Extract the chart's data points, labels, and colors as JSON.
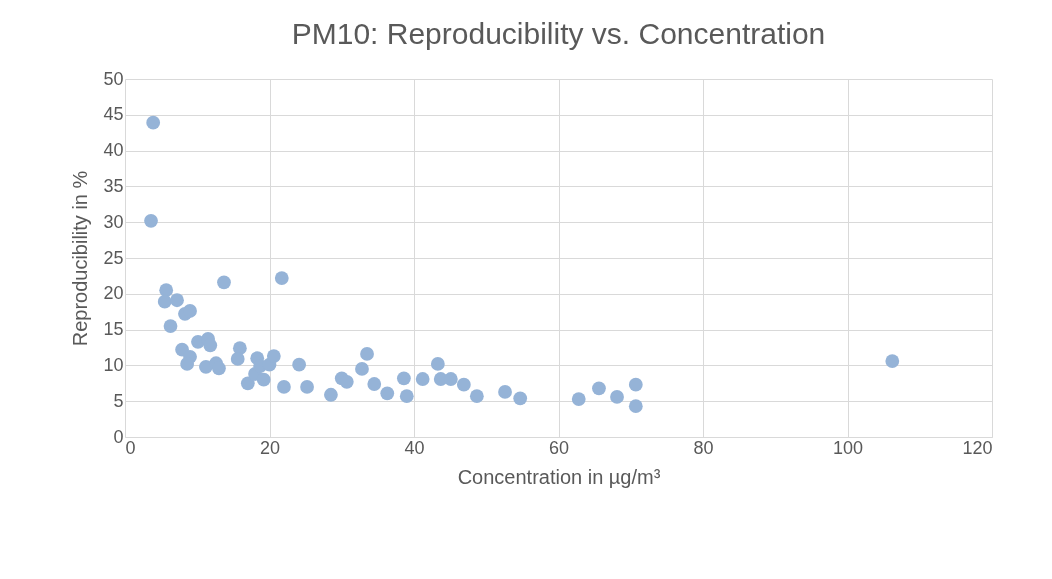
{
  "chart_data": {
    "type": "scatter",
    "title": "PM10: Reproducibility vs. Concentration",
    "xlabel": "Concentration in µg/m³",
    "ylabel": "Reproducibility in %",
    "x": [
      3.9,
      3.6,
      5.7,
      5.5,
      7.2,
      8.3,
      9.0,
      6.3,
      13.7,
      21.7,
      7.9,
      9.0,
      8.6,
      10.1,
      11.5,
      11.8,
      11.2,
      12.6,
      13.0,
      15.9,
      15.6,
      17.0,
      18.0,
      18.3,
      18.7,
      19.2,
      20.0,
      20.6,
      22.0,
      24.1,
      25.2,
      28.5,
      30.0,
      30.7,
      32.8,
      33.5,
      34.5,
      36.3,
      38.6,
      39.0,
      41.2,
      43.3,
      43.7,
      45.1,
      46.9,
      48.7,
      52.6,
      54.7,
      62.8,
      65.6,
      68.1,
      70.7,
      70.7,
      106.2
    ],
    "series": [
      {
        "color": "#95b3d7",
        "values": [
          43.9,
          30.2,
          20.5,
          18.9,
          19.1,
          17.2,
          17.6,
          15.5,
          21.6,
          22.2,
          12.2,
          11.2,
          10.2,
          13.3,
          13.7,
          12.8,
          9.8,
          10.3,
          9.6,
          12.4,
          10.9,
          7.5,
          8.8,
          11.0,
          9.9,
          8.0,
          10.1,
          11.3,
          7.0,
          10.1,
          7.0,
          5.9,
          8.2,
          7.7,
          9.5,
          11.6,
          7.4,
          6.1,
          8.2,
          5.7,
          8.1,
          10.2,
          8.1,
          8.1,
          7.3,
          5.7,
          6.3,
          5.4,
          5.3,
          6.8,
          5.6,
          7.3,
          4.3,
          10.6
        ]
      }
    ],
    "xlim": [
      0,
      120
    ],
    "xticks": [
      0,
      20,
      40,
      60,
      80,
      100,
      120
    ],
    "ylim": [
      0,
      50
    ],
    "yticks": [
      0,
      5,
      10,
      15,
      20,
      25,
      30,
      35,
      40,
      45,
      50
    ],
    "grid": true,
    "legend": false,
    "marker": "circle"
  }
}
